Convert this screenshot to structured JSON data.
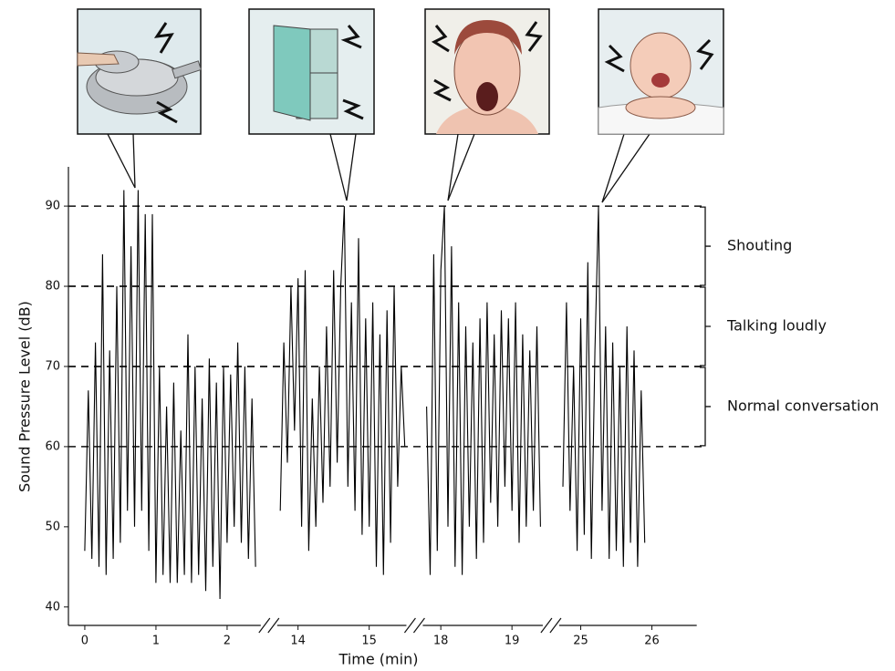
{
  "chart_data": {
    "type": "line",
    "x_label": "Time (min)",
    "y_label": "Sound Pressure Level (dB)",
    "color": "#000000",
    "ylim": [
      37.7,
      94.9
    ],
    "yticks": [
      40,
      50,
      60,
      70,
      80,
      90
    ],
    "zones": [
      {
        "label": "Shouting",
        "range": [
          80,
          90
        ]
      },
      {
        "label": "Talking loudly",
        "range": [
          70,
          80
        ]
      },
      {
        "label": "Normal conversation",
        "range": [
          60,
          70
        ]
      }
    ],
    "segments": [
      {
        "xlim": [
          -0.23,
          2.46
        ],
        "xticks": [
          0,
          1,
          2
        ],
        "x": [
          0,
          0.05,
          0.1,
          0.15,
          0.2,
          0.25,
          0.3,
          0.35,
          0.4,
          0.45,
          0.5,
          0.55,
          0.6,
          0.65,
          0.7,
          0.75,
          0.8,
          0.85,
          0.9,
          0.95,
          1.0,
          1.05,
          1.1,
          1.15,
          1.2,
          1.25,
          1.3,
          1.35,
          1.4,
          1.45,
          1.5,
          1.55,
          1.6,
          1.65,
          1.7,
          1.75,
          1.8,
          1.85,
          1.9,
          1.95,
          2.0,
          2.05,
          2.1,
          2.15,
          2.2,
          2.25,
          2.3,
          2.35,
          2.4
        ],
        "values": [
          47,
          67,
          46,
          73,
          45,
          84,
          44,
          72,
          46,
          80,
          48,
          92,
          52,
          85,
          50,
          92,
          52,
          89,
          47,
          89,
          43,
          70,
          44,
          65,
          43,
          68,
          43,
          62,
          44,
          74,
          43,
          70,
          44,
          66,
          42,
          71,
          45,
          68,
          41,
          70,
          48,
          69,
          50,
          73,
          48,
          70,
          46,
          66,
          45
        ]
      },
      {
        "xlim": [
          13.72,
          15.51
        ],
        "xticks": [
          14,
          15
        ],
        "x": [
          13.75,
          13.8,
          13.85,
          13.9,
          13.95,
          14.0,
          14.05,
          14.1,
          14.15,
          14.2,
          14.25,
          14.3,
          14.35,
          14.4,
          14.45,
          14.5,
          14.55,
          14.6,
          14.65,
          14.7,
          14.75,
          14.8,
          14.85,
          14.9,
          14.95,
          15.0,
          15.05,
          15.1,
          15.15,
          15.2,
          15.25,
          15.3,
          15.35,
          15.4,
          15.45,
          15.5
        ],
        "values": [
          52,
          73,
          58,
          80,
          62,
          81,
          50,
          82,
          47,
          66,
          50,
          70,
          53,
          75,
          55,
          82,
          58,
          80,
          90,
          55,
          78,
          52,
          86,
          49,
          76,
          50,
          78,
          45,
          74,
          44,
          77,
          48,
          80,
          55,
          70,
          60
        ]
      },
      {
        "xlim": [
          17.76,
          19.42
        ],
        "xticks": [
          18,
          19
        ],
        "x": [
          17.8,
          17.85,
          17.9,
          17.95,
          18.0,
          18.05,
          18.1,
          18.15,
          18.2,
          18.25,
          18.3,
          18.35,
          18.4,
          18.45,
          18.5,
          18.55,
          18.6,
          18.65,
          18.7,
          18.75,
          18.8,
          18.85,
          18.9,
          18.95,
          19.0,
          19.05,
          19.1,
          19.15,
          19.2,
          19.25,
          19.3,
          19.35,
          19.4
        ],
        "values": [
          65,
          44,
          84,
          47,
          82,
          90,
          50,
          85,
          45,
          78,
          44,
          75,
          50,
          73,
          46,
          76,
          48,
          78,
          53,
          74,
          50,
          77,
          55,
          76,
          52,
          78,
          48,
          74,
          50,
          72,
          52,
          75,
          50
        ]
      },
      {
        "xlim": [
          24.71,
          26.63
        ],
        "xticks": [
          25,
          26
        ],
        "x": [
          24.75,
          24.8,
          24.85,
          24.9,
          24.95,
          25.0,
          25.05,
          25.1,
          25.15,
          25.2,
          25.25,
          25.3,
          25.35,
          25.4,
          25.45,
          25.5,
          25.55,
          25.6,
          25.65,
          25.7,
          25.75,
          25.8,
          25.85,
          25.9
        ],
        "values": [
          55,
          78,
          52,
          70,
          47,
          76,
          49,
          83,
          46,
          72,
          90,
          52,
          75,
          46,
          73,
          47,
          70,
          45,
          75,
          48,
          72,
          45,
          67,
          48
        ]
      }
    ]
  }
}
